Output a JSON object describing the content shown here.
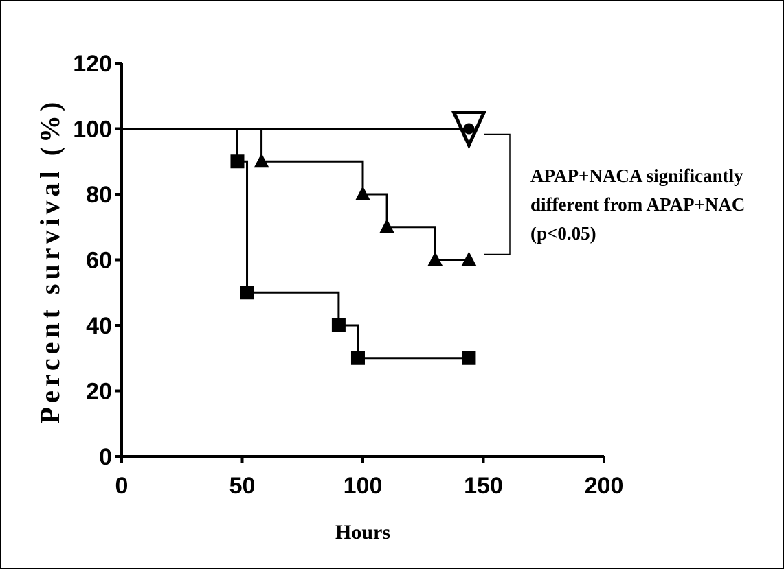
{
  "chart_data": {
    "type": "line",
    "subtype": "kaplan-meier step survival curves",
    "title": "",
    "xlabel": "Hours",
    "ylabel": "Percent survival (%)",
    "xlim": [
      0,
      200
    ],
    "ylim": [
      0,
      120
    ],
    "x_ticks": [
      0,
      50,
      100,
      150,
      200
    ],
    "y_ticks": [
      0,
      20,
      40,
      60,
      80,
      100,
      120
    ],
    "grid": false,
    "legend": "none",
    "series": [
      {
        "marker": "square",
        "x": [
          0,
          48,
          52,
          90,
          98,
          144
        ],
        "y": [
          100,
          90,
          50,
          40,
          30,
          30
        ]
      },
      {
        "marker": "triangle-up",
        "x": [
          0,
          58,
          100,
          110,
          130,
          144
        ],
        "y": [
          100,
          90,
          80,
          70,
          60,
          60
        ]
      },
      {
        "marker": "circle",
        "x": [
          0,
          144
        ],
        "y": [
          100,
          100
        ]
      },
      {
        "marker": "triangle-down",
        "x": [
          0,
          144
        ],
        "y": [
          100,
          100
        ]
      }
    ],
    "annotations": [
      {
        "lines": [
          "APAP+NACA significantly",
          "different from APAP+NAC",
          " (p<0.05)"
        ],
        "bracket_from_y": 100,
        "bracket_to_y": 60
      }
    ]
  }
}
